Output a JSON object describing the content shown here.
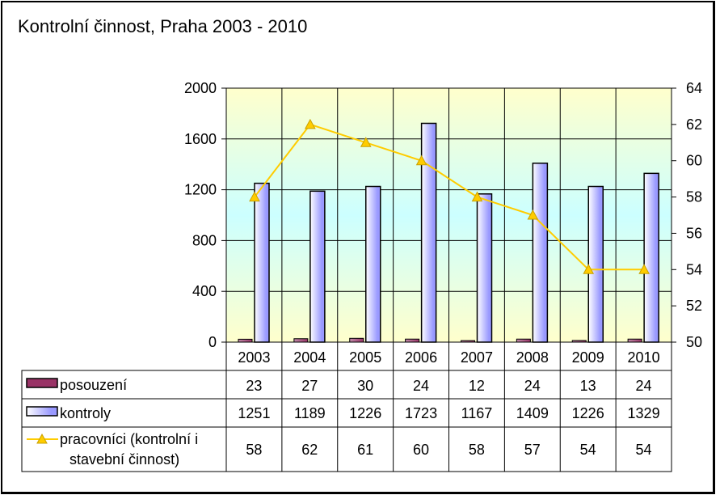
{
  "chart_data": {
    "type": "bar",
    "title": "Kontrolní činnost, Praha 2003 - 2010",
    "categories": [
      "2003",
      "2004",
      "2005",
      "2006",
      "2007",
      "2008",
      "2009",
      "2010"
    ],
    "series": [
      {
        "name": "posouzení",
        "kind": "bar",
        "axis": "left",
        "color": "#993366",
        "values": [
          23,
          27,
          30,
          24,
          12,
          24,
          13,
          24
        ]
      },
      {
        "name": "kontroly",
        "kind": "bar",
        "axis": "left",
        "color": "#9999ff",
        "values": [
          1251,
          1189,
          1226,
          1723,
          1167,
          1409,
          1226,
          1329
        ]
      },
      {
        "name": "pracovníci (kontrolní i stavební činnost)",
        "legend_lines": [
          "pracovníci (kontrolní i",
          "stavební činnost)"
        ],
        "kind": "line",
        "axis": "right",
        "color": "#ffcc00",
        "values": [
          58,
          62,
          61,
          60,
          58,
          57,
          54,
          54
        ]
      }
    ],
    "y_left": {
      "min": 0,
      "max": 2000,
      "ticks": [
        "0",
        "400",
        "800",
        "1200",
        "1600",
        "2000"
      ]
    },
    "y_right": {
      "min": 50,
      "max": 64,
      "ticks": [
        "50",
        "52",
        "54",
        "56",
        "58",
        "60",
        "62",
        "64"
      ]
    },
    "gridlines": true,
    "legend": "data-table-below"
  }
}
